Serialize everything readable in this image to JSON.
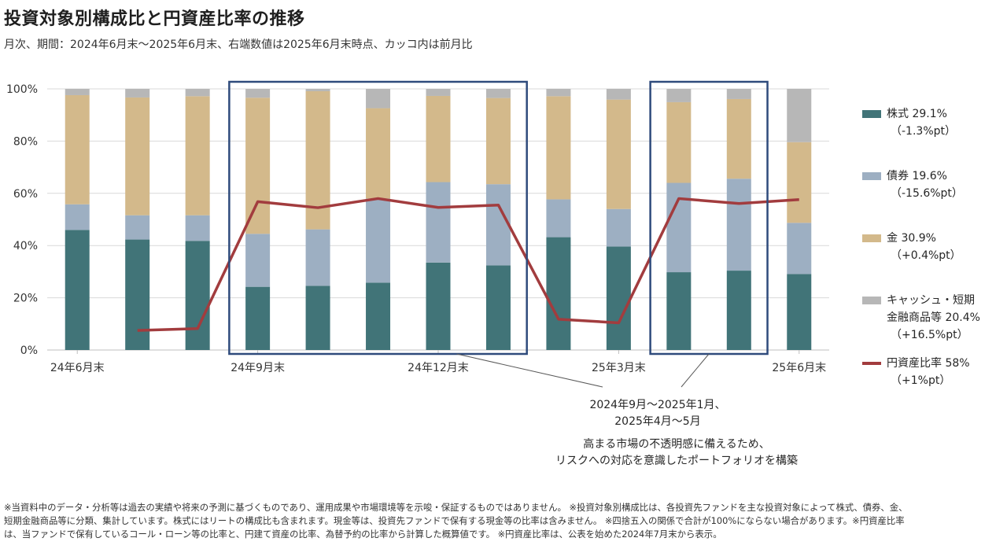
{
  "title": "投資対象別構成比と円資産比率の推移",
  "subtitle": "月次、期間：2024年6月末～2025年6月末、右端数値は2025年6月末時点、カッコ内は前月比",
  "colors": {
    "stock": "#417478",
    "bond": "#9dafc2",
    "gold": "#d3b98b",
    "cash": "#b7b7b7",
    "yen": "#a23c3e",
    "box": "#2f4b7c",
    "grid": "#d9d9d9"
  },
  "legend": [
    {
      "key": "stock",
      "kind": "bar",
      "label": "株式 29.1%",
      "sub": "（-1.3%pt）"
    },
    {
      "key": "bond",
      "kind": "bar",
      "label": "債券 19.6%",
      "sub": "（-15.6%pt）"
    },
    {
      "key": "gold",
      "kind": "bar",
      "label": "金 30.9%",
      "sub": "（+0.4%pt）"
    },
    {
      "key": "cash",
      "kind": "bar",
      "label": "キャッシュ・短期",
      "label2": "金融商品等 20.4%",
      "sub": "（+16.5%pt）"
    },
    {
      "key": "yen",
      "kind": "line",
      "label": "円資産比率 58%",
      "sub": "（+1%pt）"
    }
  ],
  "annotation": {
    "period_lines": [
      "2024年9月～2025年1月、",
      "2025年4月～5月"
    ],
    "comment_lines": [
      "高まる市場の不透明感に備えるため、",
      "リスクへの対応を意識したポートフォリオを構築"
    ]
  },
  "footnote": [
    "※当資料中のデータ・分析等は過去の実績や将来の予測に基づくものであり、運用成果や市場環境等を示唆・保証するものではありません。 ※投資対象別構成比は、各投資先ファンドを主な投資対象によって株式、債券、金、",
    "短期金融商品等に分類、集計しています。株式にはリートの構成比も含まれます。現金等は、投資先ファンドで保有する現金等の比率は含みません。 ※四捨五入の関係で合計が100%にならない場合があります。※円資産比率",
    "は、当ファンドで保有しているコール・ローン等の比率と、円建て資産の比率、為替予約の比率から計算した概算値です。 ※円資産比率は、公表を始めた2024年7月末から表示。"
  ],
  "chart_data": {
    "type": "bar",
    "stacked": true,
    "title": "投資対象別構成比と円資産比率の推移",
    "categories": [
      "2024-06",
      "2024-07",
      "2024-08",
      "2024-09",
      "2024-10",
      "2024-11",
      "2024-12",
      "2025-01",
      "2025-02",
      "2025-03",
      "2025-04",
      "2025-05",
      "2025-06"
    ],
    "x_tick_labels": [
      {
        "index": 0,
        "label": "24年6月末"
      },
      {
        "index": 3,
        "label": "24年9月末"
      },
      {
        "index": 6,
        "label": "24年12月末"
      },
      {
        "index": 9,
        "label": "25年3月末"
      },
      {
        "index": 12,
        "label": "25年6月末"
      }
    ],
    "ylim": [
      0,
      100
    ],
    "y_ticks": [
      0,
      20,
      40,
      60,
      80,
      100
    ],
    "y_tick_labels": [
      "0%",
      "20%",
      "40%",
      "60%",
      "80%",
      "100%"
    ],
    "series": [
      {
        "name": "株式",
        "key": "stock",
        "values": [
          46,
          42.3,
          41.8,
          24.2,
          24.6,
          25.8,
          33.5,
          32.4,
          43.2,
          39.6,
          29.8,
          30.4,
          29.1
        ]
      },
      {
        "name": "債券",
        "key": "bond",
        "values": [
          9.8,
          9.3,
          9.8,
          20.3,
          21.6,
          32.2,
          30.8,
          31.1,
          14.5,
          14.4,
          34.2,
          35.2,
          19.6
        ]
      },
      {
        "name": "金",
        "key": "gold",
        "values": [
          41.8,
          45.1,
          45.6,
          52.1,
          52.9,
          34.6,
          33.0,
          33.0,
          39.5,
          41.9,
          30.9,
          30.5,
          30.9
        ]
      },
      {
        "name": "キャッシュ・短期金融商品等",
        "key": "cash",
        "values": [
          2.4,
          3.3,
          2.8,
          3.4,
          0.9,
          7.4,
          2.7,
          3.5,
          2.8,
          4.1,
          5.1,
          3.9,
          20.4
        ]
      }
    ],
    "line_series": {
      "name": "円資産比率",
      "key": "yen",
      "values": [
        null,
        7.5,
        8.2,
        56.8,
        54.5,
        58.0,
        54.6,
        55.5,
        11.8,
        10.4,
        58.0,
        56.1,
        57.6
      ]
    },
    "highlight_ranges": [
      {
        "from": 3,
        "to": 7
      },
      {
        "from": 10,
        "to": 11
      }
    ],
    "legend_position": "right"
  }
}
